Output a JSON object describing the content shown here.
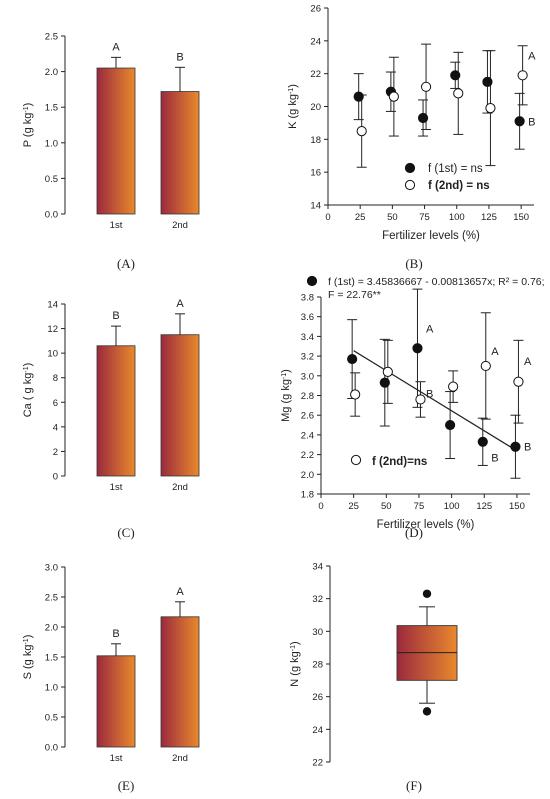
{
  "chart_data": [
    {
      "panel": "(A)",
      "type": "bar",
      "categories": [
        "1st",
        "2nd"
      ],
      "values": [
        2.05,
        1.72
      ],
      "errors": [
        0.15,
        0.34
      ],
      "letters": [
        "A",
        "B"
      ],
      "ylabel": "P (g kg-1)",
      "ylabel_main": "P (g kg",
      "ylabel_sup": "-1",
      "ylabel_end": ")",
      "ylim": [
        0,
        2.5
      ],
      "yticks": [
        0.0,
        0.5,
        1.0,
        1.5,
        2.0,
        2.5
      ],
      "ytick_labels": [
        "0.0",
        "0.5",
        "1.0",
        "1.5",
        "2.0",
        "2.5"
      ]
    },
    {
      "panel": "(B)",
      "type": "scatter",
      "x": [
        25,
        50,
        75,
        100,
        125,
        150
      ],
      "series": [
        {
          "name": "f (1st) = ns",
          "marker": "filled",
          "y": [
            20.6,
            20.9,
            19.3,
            21.9,
            21.5,
            19.1
          ],
          "err": [
            1.4,
            1.2,
            1.1,
            0.8,
            1.9,
            1.7
          ]
        },
        {
          "name": "f (2nd) = ns",
          "marker": "open",
          "y": [
            18.5,
            20.6,
            21.2,
            20.8,
            19.9,
            21.9
          ],
          "err": [
            2.2,
            2.4,
            2.6,
            2.5,
            3.5,
            1.8
          ]
        }
      ],
      "legend": [
        {
          "text": "f (1st) = ns",
          "marker": "filled",
          "bold": false
        },
        {
          "text": "f (2nd) = ns",
          "marker": "open",
          "bold": true
        }
      ],
      "legend_position": "bottom-center",
      "annotations": [
        {
          "text": "A",
          "x": 150,
          "y": 23.1
        },
        {
          "text": "B",
          "x": 150,
          "y": 19.1
        }
      ],
      "xlabel": "Fertilizer levels (%)",
      "ylabel": "K (g kg-1)",
      "ylabel_main": "K (g kg",
      "ylabel_sup": "-1",
      "ylabel_end": ")",
      "xlim": [
        0,
        160
      ],
      "ylim": [
        14,
        26
      ],
      "xticks": [
        0,
        25,
        50,
        75,
        100,
        125,
        150
      ],
      "xtick_labels": [
        "0",
        "25",
        "50",
        "75",
        "100",
        "125",
        "150"
      ],
      "yticks": [
        14,
        16,
        18,
        20,
        22,
        24,
        26
      ],
      "ytick_labels": [
        "14",
        "16",
        "18",
        "20",
        "22",
        "24",
        "26"
      ]
    },
    {
      "panel": "(C)",
      "type": "bar",
      "categories": [
        "1st",
        "2nd"
      ],
      "values": [
        10.6,
        11.5
      ],
      "errors": [
        1.6,
        1.7
      ],
      "letters": [
        "B",
        "A"
      ],
      "ylabel": "Ca ( g kg-1)",
      "ylabel_main": "Ca ( g kg",
      "ylabel_sup": "-1",
      "ylabel_end": ")",
      "ylim": [
        0,
        14
      ],
      "yticks": [
        0,
        2,
        4,
        6,
        8,
        10,
        12,
        14
      ],
      "ytick_labels": [
        "0",
        "2",
        "4",
        "6",
        "8",
        "10",
        "12",
        "14"
      ]
    },
    {
      "panel": "(D)",
      "type": "scatter",
      "x": [
        25,
        50,
        75,
        100,
        125,
        150
      ],
      "series": [
        {
          "name": "f (1st) = 3.45836667 - 0.00813657x; R² = 0.76; F = 22.76**",
          "marker": "filled",
          "y": [
            3.17,
            2.93,
            3.28,
            2.5,
            2.33,
            2.28
          ],
          "err": [
            0.4,
            0.44,
            0.6,
            0.34,
            0.24,
            0.32
          ],
          "regression": {
            "intercept": 3.45836667,
            "slope": -0.00813657,
            "x_range": [
              25,
              150
            ]
          }
        },
        {
          "name": "f (2nd)=ns",
          "marker": "open",
          "y": [
            2.81,
            3.04,
            2.76,
            2.89,
            3.1,
            2.94
          ],
          "err": [
            0.22,
            0.32,
            0.18,
            0.16,
            0.54,
            0.42
          ]
        }
      ],
      "equation_lines": [
        "f (1st) = 3.45836667 - 0.00813657x; R² = 0.76;",
        "F = 22.76**"
      ],
      "legend_bottom": "f (2nd)=ns",
      "annotations": [
        {
          "text": "A",
          "x": 75,
          "y": 3.48
        },
        {
          "text": "B",
          "x": 75,
          "y": 2.82
        },
        {
          "text": "A",
          "x": 125,
          "y": 3.25
        },
        {
          "text": "B",
          "x": 125,
          "y": 2.17
        },
        {
          "text": "A",
          "x": 150,
          "y": 3.15
        },
        {
          "text": "B",
          "x": 150,
          "y": 2.28
        }
      ],
      "xlabel": "Fertilizer levels (%)",
      "ylabel": "Mg (g kg-1)",
      "ylabel_main": "Mg (g kg",
      "ylabel_sup": "-1",
      "ylabel_end": ")",
      "xlim": [
        0,
        160
      ],
      "ylim": [
        1.8,
        3.8
      ],
      "xticks": [
        0,
        25,
        50,
        75,
        100,
        125,
        150
      ],
      "xtick_labels": [
        "0",
        "25",
        "50",
        "75",
        "100",
        "125",
        "150"
      ],
      "yticks": [
        1.8,
        2.0,
        2.2,
        2.4,
        2.6,
        2.8,
        3.0,
        3.2,
        3.4,
        3.6,
        3.8
      ],
      "ytick_labels": [
        "1.8",
        "2.0",
        "2.2",
        "2.4",
        "2.6",
        "2.8",
        "3.0",
        "3.2",
        "3.4",
        "3.6",
        "3.8"
      ]
    },
    {
      "panel": "(E)",
      "type": "bar",
      "categories": [
        "1st",
        "2nd"
      ],
      "values": [
        1.52,
        2.17
      ],
      "errors": [
        0.2,
        0.25
      ],
      "letters": [
        "B",
        "A"
      ],
      "ylabel": "S (g kg-1)",
      "ylabel_main": "S (g kg",
      "ylabel_sup": "-1",
      "ylabel_end": ")",
      "ylim": [
        0,
        3.0
      ],
      "yticks": [
        0.0,
        0.5,
        1.0,
        1.5,
        2.0,
        2.5,
        3.0
      ],
      "ytick_labels": [
        "0.0",
        "0.5",
        "1.0",
        "1.5",
        "2.0",
        "2.5",
        "3.0"
      ]
    },
    {
      "panel": "(F)",
      "type": "box",
      "box": {
        "q1": 27.0,
        "median": 28.7,
        "q3": 30.35,
        "whisker_low": 25.6,
        "whisker_high": 31.5,
        "outliers": [
          32.3,
          25.1
        ]
      },
      "ylabel": "N (g kg-1)",
      "ylabel_main": "N (g kg",
      "ylabel_sup": "-1",
      "ylabel_end": ")",
      "ylim": [
        22,
        34
      ],
      "yticks": [
        22,
        24,
        26,
        28,
        30,
        32,
        34
      ],
      "ytick_labels": [
        "22",
        "24",
        "26",
        "28",
        "30",
        "32",
        "34"
      ]
    }
  ],
  "colors": {
    "bar_gradient_start": "#9b2a3e",
    "bar_gradient_end": "#e9892d",
    "axis": "#222222"
  }
}
